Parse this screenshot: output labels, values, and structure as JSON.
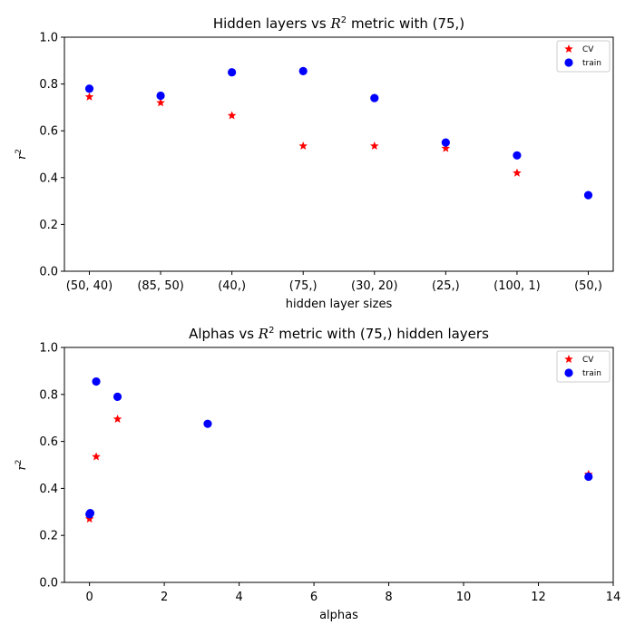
{
  "chart_data": [
    {
      "type": "scatter",
      "title": "Hidden layers vs R² metric with (75,)",
      "title_parts": {
        "pre": "Hidden layers vs ",
        "var": "R",
        "sup": "2",
        "post": " metric with (75,)"
      },
      "xlabel": "hidden layer sizes",
      "ylabel": "r²",
      "x_categories": [
        "(50, 40)",
        "(85, 50)",
        "(40,)",
        "(75,)",
        "(30, 20)",
        "(25,)",
        "(100, 1)",
        "(50,)"
      ],
      "ylim": [
        0,
        1
      ],
      "yticks": [
        "0.0",
        "0.2",
        "0.4",
        "0.6",
        "0.8",
        "1.0"
      ],
      "legend_position": "top-right",
      "series": [
        {
          "name": "CV",
          "marker": "star",
          "color": "#ff0000",
          "values": [
            0.745,
            0.72,
            0.665,
            0.535,
            0.535,
            0.525,
            0.42,
            null
          ]
        },
        {
          "name": "train",
          "marker": "circle",
          "color": "#0000ff",
          "values": [
            0.78,
            0.75,
            0.85,
            0.855,
            0.74,
            0.55,
            0.495,
            0.325
          ]
        }
      ]
    },
    {
      "type": "scatter",
      "title": "Alphas vs R² metric with (75,) hidden layers",
      "title_parts": {
        "pre": "Alphas vs ",
        "var": "R",
        "sup": "2",
        "post": " metric with (75,) hidden layers"
      },
      "xlabel": "alphas",
      "ylabel": "r²",
      "xlim": [
        -0.67,
        14
      ],
      "ylim": [
        0,
        1
      ],
      "xticks": [
        "0",
        "2",
        "4",
        "6",
        "8",
        "10",
        "12",
        "14"
      ],
      "xtick_values": [
        0,
        2,
        4,
        6,
        8,
        10,
        12,
        14
      ],
      "yticks": [
        "0.0",
        "0.2",
        "0.4",
        "0.6",
        "0.8",
        "1.0"
      ],
      "legend_position": "top-right",
      "series": [
        {
          "name": "CV",
          "marker": "star",
          "color": "#ff0000",
          "x": [
            0.001,
            0.02,
            0.18,
            0.75,
            13.34
          ],
          "y": [
            0.27,
            0.29,
            0.535,
            0.695,
            0.46
          ]
        },
        {
          "name": "train",
          "marker": "circle",
          "color": "#0000ff",
          "x": [
            0.001,
            0.02,
            0.18,
            0.75,
            3.16,
            13.34
          ],
          "y": [
            0.29,
            0.295,
            0.855,
            0.79,
            0.675,
            0.45
          ]
        }
      ]
    }
  ]
}
